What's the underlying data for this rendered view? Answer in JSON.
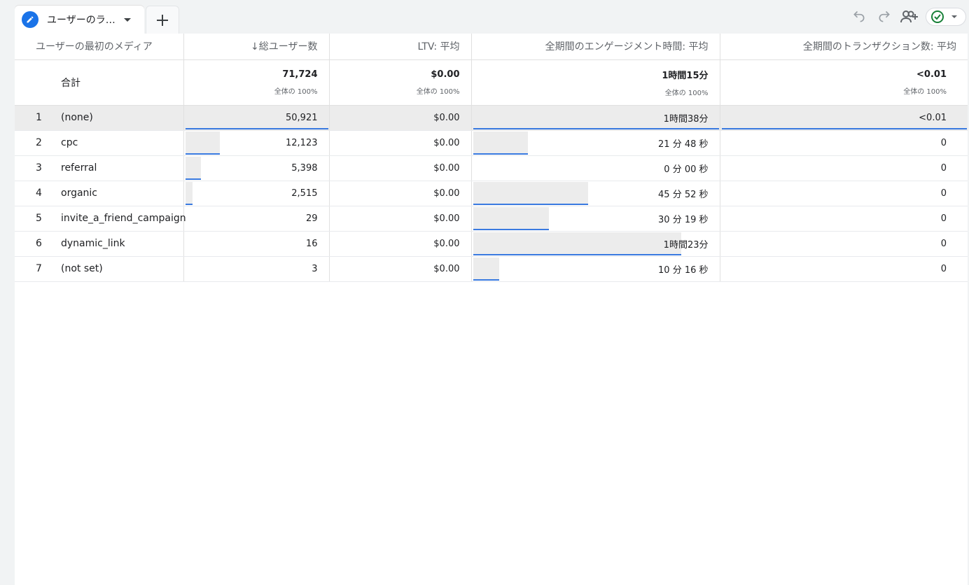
{
  "tab": {
    "label": "ユーザーのラ…",
    "add_label": "+"
  },
  "toolbar": {
    "undo": "undo-icon",
    "redo": "redo-icon",
    "share": "share-user-icon",
    "status": "check-circle-icon"
  },
  "colors": {
    "accent": "#1a73e8",
    "bar_line": "#3a7ae0",
    "bar_fill": "#ececec",
    "check": "#188038"
  },
  "table": {
    "headers": {
      "dimension": "ユーザーの最初のメディア",
      "users": "↓総ユーザー数",
      "ltv": "LTV: 平均",
      "engagement": "全期間のエンゲージメント時間: 平均",
      "transactions": "全期間のトランザクション数: 平均"
    },
    "total": {
      "label": "合計",
      "users": "71,724",
      "users_pct": "全体の 100%",
      "ltv": "$0.00",
      "ltv_pct": "全体の 100%",
      "engagement": "1時間15分",
      "engagement_pct": "全体の 100%",
      "transactions": "<0.01",
      "transactions_pct": "全体の 100%"
    },
    "rows": [
      {
        "rank": "1",
        "medium": "(none)",
        "users": "50,921",
        "users_share": 1.0,
        "ltv": "$0.00",
        "engagement": "1時間38分",
        "engagement_share": 1.0,
        "transactions": "<0.01",
        "transactions_share": 1.0
      },
      {
        "rank": "2",
        "medium": "cpc",
        "users": "12,123",
        "users_share": 0.238,
        "ltv": "$0.00",
        "engagement": "21 分 48 秒",
        "engagement_share": 0.222,
        "transactions": "0",
        "transactions_share": 0
      },
      {
        "rank": "3",
        "medium": "referral",
        "users": "5,398",
        "users_share": 0.106,
        "ltv": "$0.00",
        "engagement": "0 分 00 秒",
        "engagement_share": 0,
        "transactions": "0",
        "transactions_share": 0
      },
      {
        "rank": "4",
        "medium": "organic",
        "users": "2,515",
        "users_share": 0.049,
        "ltv": "$0.00",
        "engagement": "45 分 52 秒",
        "engagement_share": 0.468,
        "transactions": "0",
        "transactions_share": 0
      },
      {
        "rank": "5",
        "medium": "invite_a_friend_campaign",
        "users": "29",
        "users_share": 0,
        "ltv": "$0.00",
        "engagement": "30 分 19 秒",
        "engagement_share": 0.309,
        "transactions": "0",
        "transactions_share": 0
      },
      {
        "rank": "6",
        "medium": "dynamic_link",
        "users": "16",
        "users_share": 0,
        "ltv": "$0.00",
        "engagement": "1時間23分",
        "engagement_share": 0.847,
        "transactions": "0",
        "transactions_share": 0
      },
      {
        "rank": "7",
        "medium": "(not set)",
        "users": "3",
        "users_share": 0,
        "ltv": "$0.00",
        "engagement": "10 分 16 秒",
        "engagement_share": 0.105,
        "transactions": "0",
        "transactions_share": 0
      }
    ]
  }
}
